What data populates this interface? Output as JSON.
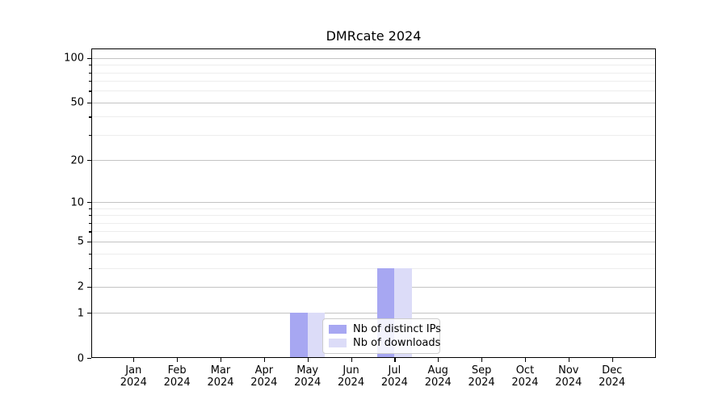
{
  "title": "DMRcate 2024",
  "chart_data": {
    "type": "bar",
    "title": "DMRcate 2024",
    "categories": [
      "Jan",
      "Feb",
      "Mar",
      "Apr",
      "May",
      "Jun",
      "Jul",
      "Aug",
      "Sep",
      "Oct",
      "Nov",
      "Dec"
    ],
    "year": "2024",
    "series": [
      {
        "name": "Nb of distinct IPs",
        "color": "#a7a7f2",
        "values": [
          0,
          0,
          0,
          0,
          1,
          0,
          3,
          0,
          0,
          0,
          0,
          0
        ]
      },
      {
        "name": "Nb of downloads",
        "color": "#dcdcf8",
        "values": [
          0,
          0,
          0,
          0,
          1,
          0,
          3,
          0,
          0,
          0,
          0,
          0
        ]
      }
    ],
    "xlabel": "",
    "ylabel": "",
    "yscale": "log1p",
    "ylim": [
      0,
      116
    ],
    "y_major_ticks": [
      0,
      1,
      2,
      5,
      10,
      20,
      50,
      100
    ],
    "y_minor_ticks": [
      3,
      4,
      6,
      7,
      8,
      9,
      30,
      40,
      60,
      70,
      80,
      90
    ],
    "grid": true,
    "legend_position": "inside-lower-center"
  },
  "colors": {
    "major_grid": "#c3c3c3",
    "minor_grid": "#ededed",
    "spine": "#000000",
    "background": "#ffffff",
    "bar_distinct_ips": "#a7a7f2",
    "bar_downloads": "#dcdcf8"
  }
}
